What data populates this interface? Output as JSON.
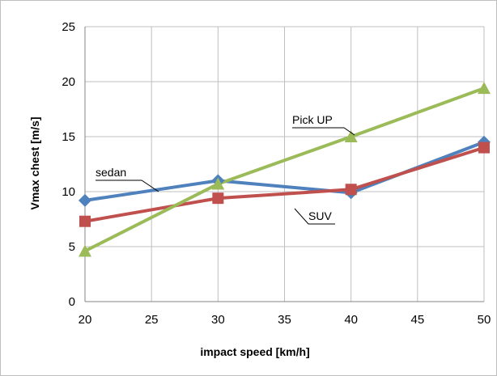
{
  "chart_data": {
    "type": "line",
    "title": "",
    "xlabel": "impact speed [km/h]",
    "ylabel": "Vmax chest [m/s]",
    "xlim": [
      20,
      50
    ],
    "ylim": [
      0,
      25
    ],
    "xticks": [
      20,
      25,
      30,
      35,
      40,
      45,
      50
    ],
    "yticks": [
      0,
      5,
      10,
      15,
      20,
      25
    ],
    "grid": true,
    "legend": "none",
    "series": [
      {
        "name": "sedan",
        "x": [
          20,
          30,
          40,
          50
        ],
        "y": [
          9.2,
          11.0,
          9.9,
          14.5
        ],
        "color": "#4f81bd",
        "marker": "diamond"
      },
      {
        "name": "SUV",
        "x": [
          20,
          30,
          40,
          50
        ],
        "y": [
          7.3,
          9.4,
          10.2,
          14.0
        ],
        "color": "#c0504d",
        "marker": "square"
      },
      {
        "name": "Pick UP",
        "x": [
          20,
          30,
          40,
          50
        ],
        "y": [
          4.6,
          10.7,
          15.0,
          19.4
        ],
        "color": "#9bbb59",
        "marker": "triangle"
      }
    ]
  }
}
